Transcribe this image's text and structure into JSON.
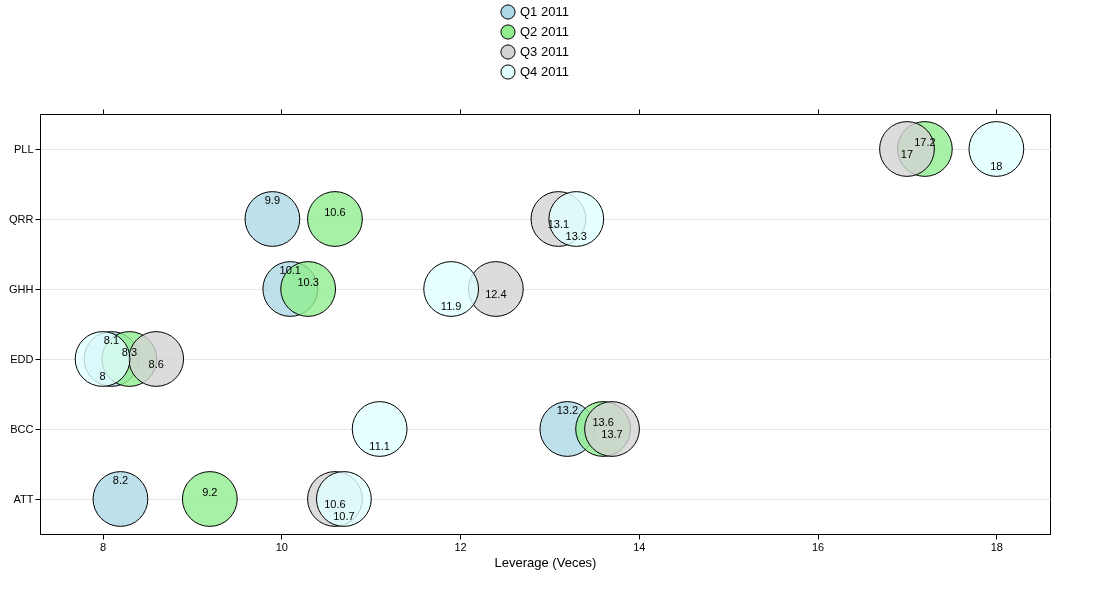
{
  "chart_data": {
    "type": "scatter",
    "xlabel": "Leverage (Veces)",
    "categories": [
      "PLL",
      "QRR",
      "GHH",
      "EDD",
      "BCC",
      "ATT"
    ],
    "orientation": "horizontal",
    "series": [
      {
        "name": "Q1 2011",
        "color": "#add8e6",
        "values": [
          null,
          9.9,
          10.1,
          8.1,
          13.2,
          8.2
        ]
      },
      {
        "name": "Q2 2011",
        "color": "#90ee90",
        "values": [
          17.2,
          10.6,
          10.3,
          8.3,
          13.6,
          9.2
        ]
      },
      {
        "name": "Q3 2011",
        "color": "#d3d3d3",
        "values": [
          17,
          13.1,
          12.4,
          8.6,
          13.7,
          10.6
        ]
      },
      {
        "name": "Q4 2011",
        "color": "#e0ffff",
        "values": [
          18,
          13.3,
          11.9,
          8,
          11.1,
          10.7
        ]
      }
    ],
    "xlim": [
      7.3,
      18.6
    ],
    "xticks": [
      8,
      10,
      12,
      14,
      16,
      18
    ],
    "grid": "y",
    "legend": "top",
    "marker": "circle",
    "data_labels": true
  }
}
